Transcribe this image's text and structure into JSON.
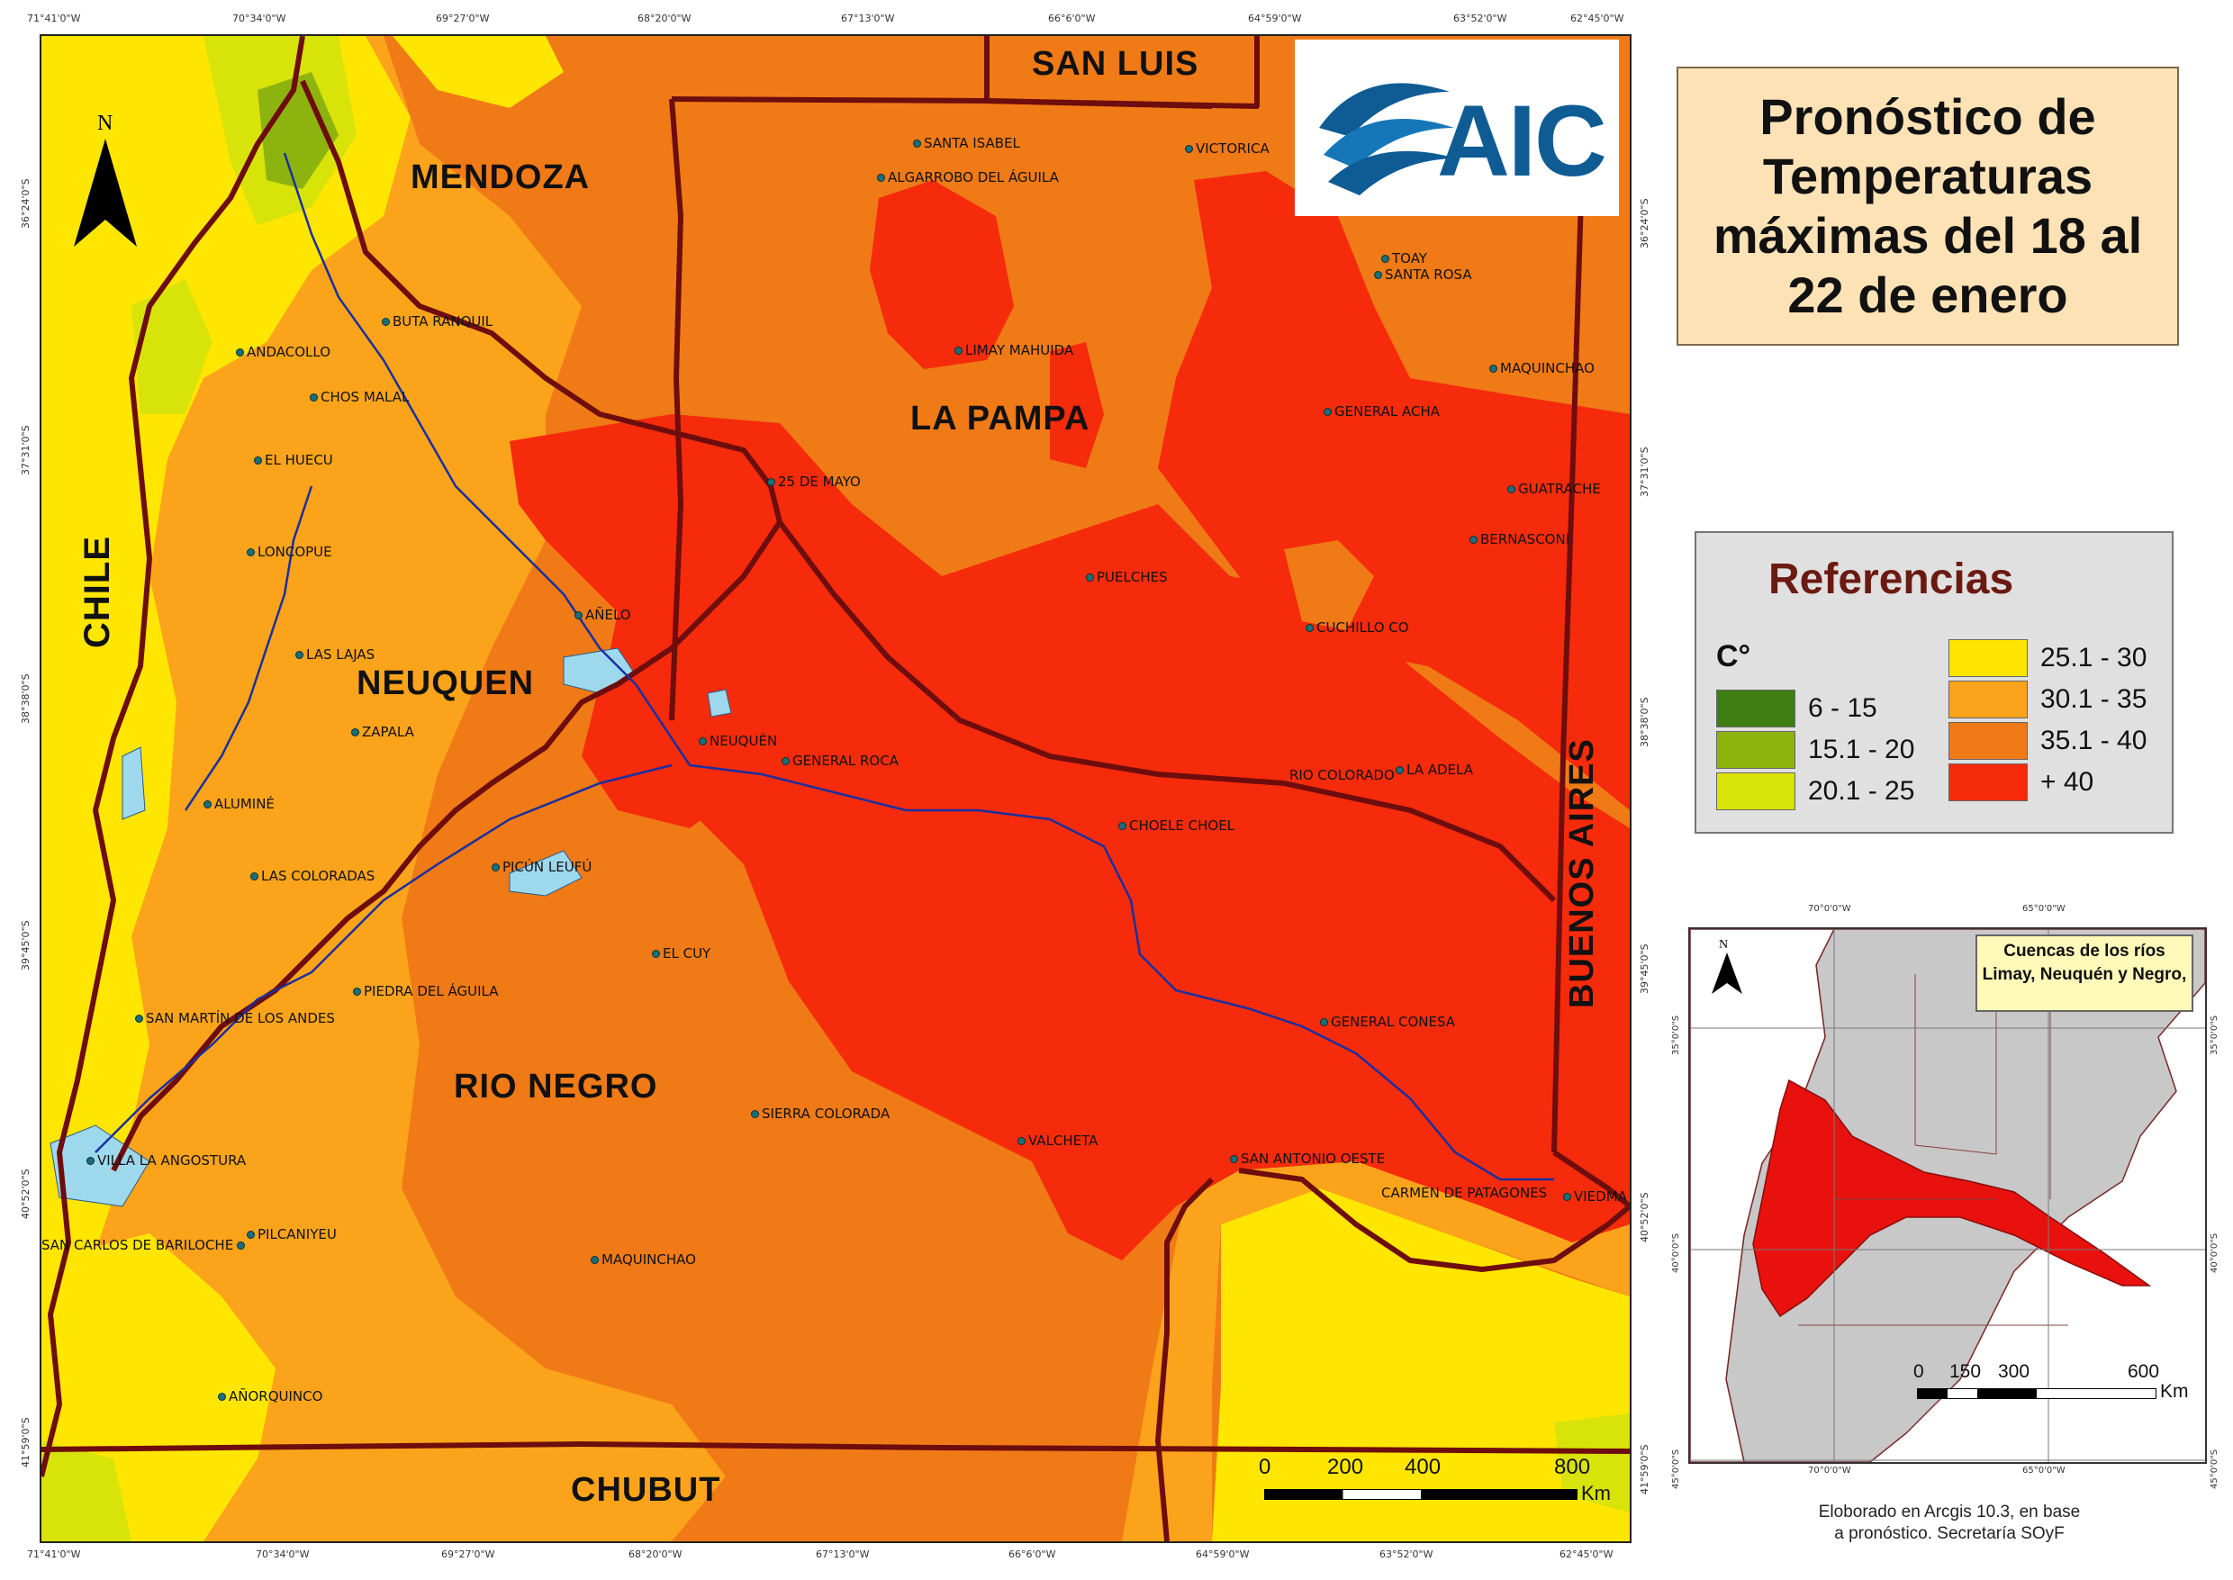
{
  "title": "Pronóstico de Temperaturas máximas del 18 al 22 de enero",
  "logo": {
    "text": "AIC"
  },
  "north_arrow": "N",
  "coords": {
    "top": [
      "71°41'0\"W",
      "70°34'0\"W",
      "69°27'0\"W",
      "68°20'0\"W",
      "67°13'0\"W",
      "66°6'0\"W",
      "64°59'0\"W",
      "63°52'0\"W",
      "62°45'0\"W"
    ],
    "left": [
      "36°24'0\"S",
      "37°31'0\"S",
      "38°38'0\"S",
      "39°45'0\"S",
      "40°52'0\"S",
      "41°59'0\"S"
    ]
  },
  "regions": {
    "chile": "CHILE",
    "mendoza": "MENDOZA",
    "san_luis": "SAN LUIS",
    "la_pampa": "LA PAMPA",
    "neuquen": "NEUQUEN",
    "rio_negro": "RIO NEGRO",
    "buenos_aires": "BUENOS AIRES",
    "chubut": "CHUBUT"
  },
  "towns": [
    {
      "name": "SANTA ISABEL"
    },
    {
      "name": "ALGARROBO DEL ÁGUILA"
    },
    {
      "name": "VICTORICA"
    },
    {
      "name": "TOAY"
    },
    {
      "name": "SANTA ROSA"
    },
    {
      "name": "LIMAY MAHUIDA"
    },
    {
      "name": "MAQUINCHAO"
    },
    {
      "name": "GENERAL ACHA"
    },
    {
      "name": "GUATRACHE"
    },
    {
      "name": "BERNASCONI"
    },
    {
      "name": "25 DE MAYO"
    },
    {
      "name": "PUELCHES"
    },
    {
      "name": "CUCHILLO CO"
    },
    {
      "name": "BUTA RANQUIL"
    },
    {
      "name": "ANDACOLLO"
    },
    {
      "name": "CHOS MALAL"
    },
    {
      "name": "EL HUECU"
    },
    {
      "name": "LONCOPUE"
    },
    {
      "name": "AÑELO"
    },
    {
      "name": "LAS LAJAS"
    },
    {
      "name": "ZAPALA"
    },
    {
      "name": "NEUQUÉN"
    },
    {
      "name": "GENERAL ROCA"
    },
    {
      "name": "RIO COLORADO"
    },
    {
      "name": "LA ADELA"
    },
    {
      "name": "CHOELE CHOEL"
    },
    {
      "name": "ALUMINÉ"
    },
    {
      "name": "LAS COLORADAS"
    },
    {
      "name": "PICÚN LEUFÚ"
    },
    {
      "name": "EL CUY"
    },
    {
      "name": "PIEDRA DEL ÁGUILA"
    },
    {
      "name": "SAN MARTÍN DE LOS ANDES"
    },
    {
      "name": "GENERAL CONESA"
    },
    {
      "name": "SIERRA COLORADA"
    },
    {
      "name": "VALCHETA"
    },
    {
      "name": "SAN ANTONIO OESTE"
    },
    {
      "name": "CARMEN DE PATAGONES"
    },
    {
      "name": "VIEDMA"
    },
    {
      "name": "VILLA LA ANGOSTURA"
    },
    {
      "name": "PILCANIYEU"
    },
    {
      "name": "SAN CARLOS DE BARILOCHE"
    },
    {
      "name": "MAQUINCHAO"
    },
    {
      "name": "AÑORQUINCO"
    }
  ],
  "scale": {
    "labels": [
      "0",
      "200",
      "400",
      "800"
    ],
    "unit": "Km"
  },
  "legend": {
    "title": "Referencias",
    "unit": "C°",
    "items": [
      {
        "label": "6 - 15",
        "color": "#3f7e12"
      },
      {
        "label": "15.1 - 20",
        "color": "#8db30e"
      },
      {
        "label": "20.1 - 25",
        "color": "#d8e30a"
      },
      {
        "label": "25.1 - 30",
        "color": "#ffe600"
      },
      {
        "label": "30.1 - 35",
        "color": "#fba41b"
      },
      {
        "label": "35.1 - 40",
        "color": "#f07a16"
      },
      {
        "label": "+ 40",
        "color": "#f52b0b"
      }
    ]
  },
  "inset": {
    "title": "Cuencas de los ríos Limay, Neuquén y Negro,",
    "north": "N",
    "coords_top": [
      "70°0'0\"W",
      "65°0'0\"W"
    ],
    "coords_bottom": [
      "70°0'0\"W",
      "65°0'0\"W"
    ],
    "coords_left": [
      "35°0'0\"S",
      "40°0'0\"S",
      "45°0'0\"S"
    ],
    "coords_right": [
      "35°0'0\"S",
      "40°0'0\"S",
      "45°0'0\"S"
    ],
    "scale_labels": [
      "0",
      "150",
      "300",
      "600"
    ],
    "scale_unit": "Km"
  },
  "credit": "Eloborado en Arcgis 10.3, en base\na pronóstico. Secretaría SOyF"
}
